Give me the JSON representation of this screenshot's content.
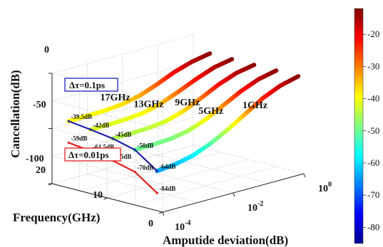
{
  "chart_data": {
    "type": "line",
    "subtype": "3d-line-ribbons",
    "title": "",
    "xlabel": "Amputide deviation(dB)",
    "ylabel": "Frequency(GHz)",
    "zlabel": "Cancellation(dB)",
    "x_scale": "log",
    "x_ticks": [
      "10",
      "10",
      "10"
    ],
    "x_tick_exponents": [
      "-4",
      "-2",
      "0"
    ],
    "y_ticks": [
      "0",
      "10",
      "20"
    ],
    "z_ticks": [
      "0",
      "-50",
      "-100"
    ],
    "zlim": [
      -100,
      0
    ],
    "grid": true,
    "colormap": "jet",
    "colorbar": {
      "ticks": [
        "-20",
        "-30",
        "-40",
        "-50",
        "-60",
        "-70",
        "-80"
      ],
      "range": [
        -85,
        -12
      ]
    },
    "series": [
      {
        "name": "17GHz",
        "frequency_ghz": 17,
        "x_log10": [
          -4,
          -3.5,
          -3,
          -2.5,
          -2,
          -1.5,
          -1,
          -0.5,
          0
        ],
        "cancellation_dB": [
          -39.5,
          -39.3,
          -38.9,
          -37.5,
          -34,
          -28,
          -21,
          -16,
          -13
        ]
      },
      {
        "name": "13GHz",
        "frequency_ghz": 13,
        "x_log10": [
          -4,
          -3.5,
          -3,
          -2.5,
          -2,
          -1.5,
          -1,
          -0.5,
          0
        ],
        "cancellation_dB": [
          -42,
          -41.8,
          -41.3,
          -39.8,
          -35.5,
          -29,
          -22,
          -16,
          -13
        ]
      },
      {
        "name": "9GHz",
        "frequency_ghz": 9,
        "x_log10": [
          -4,
          -3.5,
          -3,
          -2.5,
          -2,
          -1.5,
          -1,
          -0.5,
          0
        ],
        "cancellation_dB": [
          -45,
          -44.8,
          -44.2,
          -42.3,
          -37.5,
          -30,
          -22,
          -16,
          -13
        ]
      },
      {
        "name": "5GHz",
        "frequency_ghz": 5,
        "x_log10": [
          -4,
          -3.5,
          -3,
          -2.5,
          -2,
          -1.5,
          -1,
          -0.5,
          0
        ],
        "cancellation_dB": [
          -50,
          -49.7,
          -48.8,
          -46,
          -40,
          -31.5,
          -23,
          -16.5,
          -13
        ]
      },
      {
        "name": "1GHz",
        "frequency_ghz": 1,
        "x_log10": [
          -4,
          -3.5,
          -3,
          -2.5,
          -2,
          -1.5,
          -1,
          -0.5,
          0
        ],
        "cancellation_dB": [
          -64,
          -62.5,
          -59,
          -52.5,
          -44,
          -34,
          -24,
          -17,
          -13
        ]
      }
    ],
    "delta_curves": [
      {
        "name": "Δτ=0.1ps",
        "color": "#1f1fa8",
        "frequency_ghz": [
          17,
          13,
          9,
          5,
          1
        ],
        "cancellation_dB": [
          -39.5,
          -42,
          -45,
          -50,
          -64
        ],
        "labels": [
          "-39.5dB",
          "-42dB",
          "-45dB",
          "-50dB",
          "-64dB"
        ]
      },
      {
        "name": "Δτ=0.01ps",
        "color": "#e02020",
        "frequency_ghz": [
          17,
          13,
          9,
          5,
          1
        ],
        "cancellation_dB": [
          -59,
          -61.5,
          -65,
          -70,
          -84
        ],
        "labels": [
          "-59dB",
          "-61.5dB",
          "-65dB",
          "-70dB",
          "-84dB"
        ]
      }
    ],
    "annotations": {
      "box_01ps": "Δτ=0.1ps",
      "box_001ps": "Δτ=0.01ps",
      "box_01ps_color": "#2020c0",
      "box_001ps_color": "#e02020"
    }
  }
}
